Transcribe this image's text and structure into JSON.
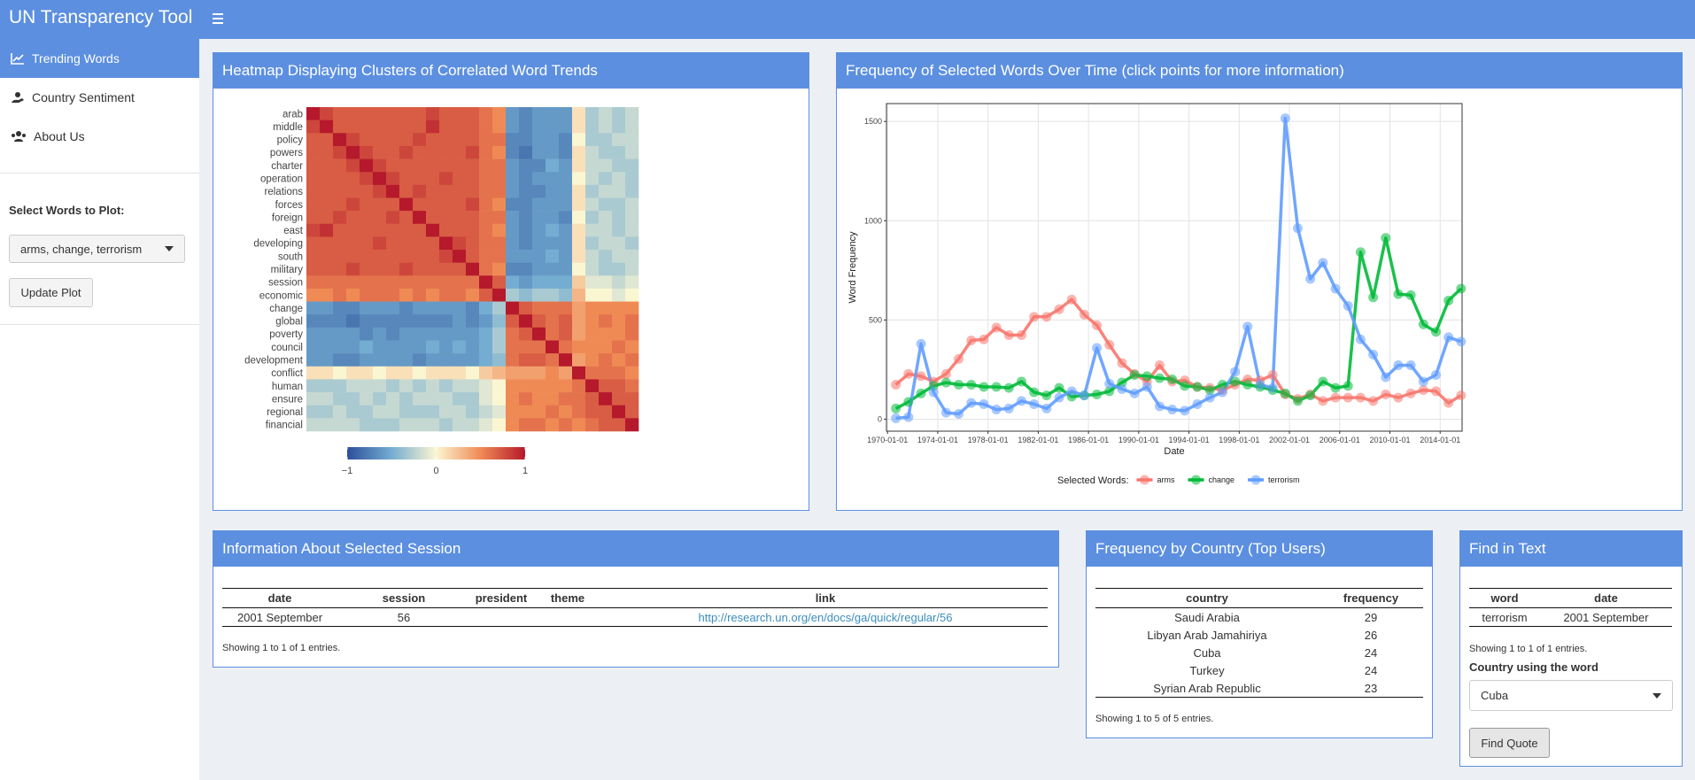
{
  "header": {
    "title": "UN Transparency Tool"
  },
  "sidebar": {
    "menu": [
      "Trending Words",
      "Country Sentiment",
      "About Us"
    ],
    "select_label": "Select Words to Plot:",
    "select_value": "arms, change, terrorism",
    "button": "Update Plot"
  },
  "chart_data": [
    {
      "type": "heatmap",
      "title": "Heatmap Displaying Clusters of Correlated Word Trends",
      "categories": [
        "arab",
        "middle",
        "policy",
        "powers",
        "charter",
        "operation",
        "relations",
        "forces",
        "foreign",
        "east",
        "developing",
        "south",
        "military",
        "session",
        "economic",
        "change",
        "global",
        "poverty",
        "council",
        "development",
        "conflict",
        "human",
        "ensure",
        "regional",
        "financial"
      ],
      "values": [
        [
          1,
          0.8,
          0.7,
          0.7,
          0.7,
          0.7,
          0.7,
          0.7,
          0.7,
          0.8,
          0.7,
          0.7,
          0.7,
          0.6,
          0.5,
          -0.6,
          -0.7,
          -0.6,
          -0.6,
          -0.6,
          0.1,
          -0.3,
          -0.2,
          -0.3,
          -0.2
        ],
        [
          0.8,
          1,
          0.7,
          0.7,
          0.7,
          0.7,
          0.7,
          0.7,
          0.7,
          0.9,
          0.7,
          0.7,
          0.7,
          0.6,
          0.5,
          -0.6,
          -0.7,
          -0.6,
          -0.6,
          -0.6,
          0.1,
          -0.3,
          -0.2,
          -0.3,
          -0.2
        ],
        [
          0.7,
          0.7,
          1,
          0.8,
          0.7,
          0.7,
          0.7,
          0.7,
          0.8,
          0.7,
          0.7,
          0.7,
          0.7,
          0.6,
          0.6,
          -0.7,
          -0.7,
          -0.6,
          -0.6,
          -0.7,
          0,
          -0.3,
          -0.3,
          -0.2,
          -0.2
        ],
        [
          0.7,
          0.7,
          0.8,
          1,
          0.8,
          0.7,
          0.7,
          0.8,
          0.7,
          0.7,
          0.7,
          0.7,
          0.8,
          0.6,
          0.5,
          -0.7,
          -0.8,
          -0.6,
          -0.6,
          -0.7,
          0.1,
          -0.2,
          -0.3,
          -0.3,
          -0.2
        ],
        [
          0.7,
          0.7,
          0.7,
          0.8,
          1,
          0.8,
          0.7,
          0.7,
          0.7,
          0.7,
          0.7,
          0.7,
          0.7,
          0.6,
          0.6,
          -0.6,
          -0.7,
          -0.7,
          -0.5,
          -0.6,
          0.1,
          -0.2,
          -0.2,
          -0.3,
          -0.3
        ],
        [
          0.7,
          0.7,
          0.7,
          0.7,
          0.8,
          1,
          0.8,
          0.7,
          0.7,
          0.7,
          0.8,
          0.7,
          0.7,
          0.6,
          0.6,
          -0.6,
          -0.7,
          -0.6,
          -0.6,
          -0.6,
          0,
          -0.2,
          -0.3,
          -0.2,
          -0.3
        ],
        [
          0.7,
          0.7,
          0.7,
          0.7,
          0.7,
          0.8,
          1,
          0.7,
          0.8,
          0.7,
          0.7,
          0.7,
          0.7,
          0.6,
          0.6,
          -0.6,
          -0.7,
          -0.7,
          -0.6,
          -0.6,
          0.1,
          -0.3,
          -0.2,
          -0.2,
          -0.3
        ],
        [
          0.7,
          0.7,
          0.7,
          0.8,
          0.7,
          0.7,
          0.7,
          1,
          0.7,
          0.7,
          0.7,
          0.7,
          0.8,
          0.6,
          0.5,
          -0.7,
          -0.7,
          -0.6,
          -0.6,
          -0.6,
          0.1,
          -0.2,
          -0.3,
          -0.3,
          -0.2
        ],
        [
          0.7,
          0.7,
          0.8,
          0.7,
          0.7,
          0.7,
          0.8,
          0.7,
          1,
          0.7,
          0.7,
          0.7,
          0.7,
          0.6,
          0.6,
          -0.6,
          -0.7,
          -0.6,
          -0.6,
          -0.7,
          0,
          -0.3,
          -0.2,
          -0.3,
          -0.2
        ],
        [
          0.8,
          0.9,
          0.7,
          0.7,
          0.7,
          0.7,
          0.7,
          0.7,
          0.7,
          1,
          0.7,
          0.7,
          0.7,
          0.6,
          0.5,
          -0.6,
          -0.7,
          -0.6,
          -0.5,
          -0.6,
          0.1,
          -0.2,
          -0.2,
          -0.3,
          -0.2
        ],
        [
          0.7,
          0.7,
          0.7,
          0.7,
          0.7,
          0.8,
          0.7,
          0.7,
          0.7,
          0.7,
          1,
          0.8,
          0.7,
          0.6,
          0.6,
          -0.6,
          -0.7,
          -0.6,
          -0.6,
          -0.6,
          0.1,
          -0.3,
          -0.2,
          -0.2,
          -0.3
        ],
        [
          0.7,
          0.7,
          0.7,
          0.7,
          0.7,
          0.7,
          0.7,
          0.7,
          0.7,
          0.7,
          0.8,
          1,
          0.7,
          0.6,
          0.6,
          -0.6,
          -0.6,
          -0.6,
          -0.5,
          -0.6,
          0.1,
          -0.2,
          -0.3,
          -0.2,
          -0.2
        ],
        [
          0.7,
          0.7,
          0.7,
          0.8,
          0.7,
          0.7,
          0.7,
          0.8,
          0.7,
          0.7,
          0.7,
          0.7,
          1,
          0.6,
          0.5,
          -0.7,
          -0.7,
          -0.6,
          -0.6,
          -0.6,
          0,
          -0.2,
          -0.3,
          -0.3,
          -0.2
        ],
        [
          0.6,
          0.6,
          0.6,
          0.6,
          0.6,
          0.6,
          0.6,
          0.6,
          0.6,
          0.6,
          0.6,
          0.6,
          0.6,
          1,
          0.7,
          -0.5,
          -0.6,
          -0.5,
          -0.5,
          -0.5,
          0.2,
          -0.1,
          -0.1,
          -0.2,
          -0.1
        ],
        [
          0.5,
          0.5,
          0.6,
          0.5,
          0.6,
          0.6,
          0.6,
          0.5,
          0.6,
          0.5,
          0.6,
          0.6,
          0.5,
          0.7,
          1,
          -0.3,
          -0.4,
          -0.3,
          -0.3,
          -0.4,
          0.3,
          0,
          0,
          -0.1,
          0
        ],
        [
          -0.6,
          -0.6,
          -0.7,
          -0.7,
          -0.6,
          -0.6,
          -0.6,
          -0.7,
          -0.6,
          -0.6,
          -0.6,
          -0.6,
          -0.7,
          -0.5,
          -0.3,
          1,
          0.7,
          0.6,
          0.6,
          0.6,
          0.4,
          0.5,
          0.5,
          0.5,
          0.5
        ],
        [
          -0.7,
          -0.7,
          -0.7,
          -0.8,
          -0.7,
          -0.7,
          -0.7,
          -0.7,
          -0.7,
          -0.7,
          -0.7,
          -0.6,
          -0.7,
          -0.6,
          -0.4,
          0.7,
          1,
          0.7,
          0.6,
          0.7,
          0.4,
          0.5,
          0.6,
          0.5,
          0.6
        ],
        [
          -0.6,
          -0.6,
          -0.6,
          -0.6,
          -0.7,
          -0.6,
          -0.7,
          -0.6,
          -0.6,
          -0.6,
          -0.6,
          -0.6,
          -0.6,
          -0.5,
          -0.3,
          0.6,
          0.7,
          1,
          0.6,
          0.7,
          0.4,
          0.5,
          0.5,
          0.5,
          0.6
        ],
        [
          -0.6,
          -0.6,
          -0.6,
          -0.6,
          -0.5,
          -0.6,
          -0.6,
          -0.6,
          -0.6,
          -0.5,
          -0.6,
          -0.5,
          -0.6,
          -0.5,
          -0.3,
          0.6,
          0.6,
          0.6,
          1,
          0.6,
          0.5,
          0.5,
          0.5,
          0.6,
          0.5
        ],
        [
          -0.6,
          -0.6,
          -0.7,
          -0.7,
          -0.6,
          -0.6,
          -0.6,
          -0.6,
          -0.7,
          -0.6,
          -0.6,
          -0.6,
          -0.6,
          -0.5,
          -0.4,
          0.6,
          0.7,
          0.7,
          0.6,
          1,
          0.4,
          0.5,
          0.6,
          0.5,
          0.6
        ],
        [
          0.1,
          0.1,
          0,
          0.1,
          0.1,
          0,
          0.1,
          0.1,
          0,
          0.1,
          0.1,
          0.1,
          0,
          0.2,
          0.3,
          0.4,
          0.4,
          0.4,
          0.5,
          0.4,
          1,
          0.6,
          0.6,
          0.6,
          0.5
        ],
        [
          -0.3,
          -0.3,
          -0.3,
          -0.2,
          -0.2,
          -0.2,
          -0.3,
          -0.2,
          -0.3,
          -0.2,
          -0.3,
          -0.2,
          -0.2,
          -0.1,
          0,
          0.5,
          0.5,
          0.5,
          0.5,
          0.5,
          0.6,
          1,
          0.7,
          0.7,
          0.6
        ],
        [
          -0.2,
          -0.2,
          -0.3,
          -0.3,
          -0.2,
          -0.3,
          -0.2,
          -0.3,
          -0.2,
          -0.2,
          -0.2,
          -0.3,
          -0.3,
          -0.1,
          0,
          0.5,
          0.6,
          0.5,
          0.5,
          0.6,
          0.6,
          0.7,
          1,
          0.7,
          0.7
        ],
        [
          -0.3,
          -0.3,
          -0.2,
          -0.3,
          -0.3,
          -0.2,
          -0.2,
          -0.3,
          -0.3,
          -0.3,
          -0.2,
          -0.2,
          -0.3,
          -0.2,
          -0.1,
          0.5,
          0.5,
          0.5,
          0.6,
          0.5,
          0.6,
          0.7,
          0.7,
          1,
          0.7
        ],
        [
          -0.2,
          -0.2,
          -0.2,
          -0.2,
          -0.3,
          -0.3,
          -0.3,
          -0.2,
          -0.2,
          -0.2,
          -0.3,
          -0.2,
          -0.2,
          -0.1,
          0,
          0.5,
          0.6,
          0.6,
          0.5,
          0.6,
          0.5,
          0.6,
          0.7,
          0.7,
          1
        ]
      ],
      "colorbar": {
        "lim": [
          -1,
          1
        ],
        "ticks": [
          {
            "value": -1,
            "label": "−1"
          },
          0,
          1
        ],
        "colors": [
          "#2d4f9c",
          "#74add1",
          "#fbf6d2",
          "#f08a55",
          "#b5192b"
        ]
      }
    },
    {
      "type": "line",
      "title": "Frequency of Selected Words Over Time (click points for more information)",
      "xlabel": "Date",
      "ylabel": "Word Frequency",
      "legend_title": "Selected Words:",
      "legend": "bottom",
      "grid": true,
      "x": [
        "1970-09-01",
        "1971-09-01",
        "1972-09-01",
        "1973-09-01",
        "1974-09-01",
        "1975-09-01",
        "1976-09-01",
        "1977-09-01",
        "1978-09-01",
        "1979-09-01",
        "1980-09-01",
        "1981-09-01",
        "1982-09-01",
        "1983-09-01",
        "1984-09-01",
        "1985-09-01",
        "1986-09-01",
        "1987-09-01",
        "1988-09-01",
        "1989-09-01",
        "1990-09-01",
        "1991-09-01",
        "1992-09-01",
        "1993-09-01",
        "1994-09-01",
        "1995-09-01",
        "1996-09-01",
        "1997-09-01",
        "1998-09-01",
        "1999-09-01",
        "2000-09-01",
        "2001-09-01",
        "2002-09-01",
        "2003-09-01",
        "2004-09-01",
        "2005-09-01",
        "2006-09-01",
        "2007-09-01",
        "2008-09-01",
        "2009-09-01",
        "2010-09-01",
        "2011-09-01",
        "2012-09-01",
        "2013-09-01",
        "2014-09-01",
        "2015-09-01"
      ],
      "series": [
        {
          "name": "arms",
          "color": "#f8766d",
          "values": [
            174,
            228,
            217,
            190,
            228,
            304,
            397,
            402,
            462,
            424,
            424,
            516,
            516,
            554,
            603,
            527,
            473,
            375,
            283,
            228,
            190,
            272,
            190,
            196,
            163,
            158,
            147,
            174,
            201,
            196,
            223,
            125,
            103,
            125,
            92,
            109,
            109,
            109,
            92,
            125,
            109,
            130,
            147,
            141,
            82,
            120
          ]
        },
        {
          "name": "change",
          "color": "#00ba38",
          "values": [
            54,
            87,
            130,
            168,
            185,
            174,
            174,
            163,
            163,
            158,
            190,
            136,
            120,
            158,
            114,
            120,
            125,
            141,
            185,
            223,
            217,
            207,
            201,
            168,
            163,
            147,
            174,
            190,
            174,
            163,
            147,
            130,
            92,
            120,
            190,
            158,
            168,
            842,
            614,
            913,
            630,
            625,
            478,
            440,
            598,
            658
          ]
        },
        {
          "name": "terrorism",
          "color": "#619cff",
          "values": [
            5,
            11,
            380,
            136,
            33,
            27,
            82,
            76,
            49,
            54,
            92,
            76,
            54,
            109,
            141,
            120,
            359,
            179,
            152,
            130,
            163,
            65,
            49,
            43,
            76,
            109,
            136,
            239,
            467,
            174,
            158,
            1516,
            962,
            707,
            788,
            658,
            571,
            402,
            326,
            212,
            272,
            272,
            190,
            223,
            413,
            391
          ]
        }
      ],
      "xlim": [
        "1969-12-01",
        "2015-10-01"
      ],
      "ylim": [
        -60,
        1590
      ],
      "xticks": [
        "1970-01-01",
        "1974-01-01",
        "1978-01-01",
        "1982-01-01",
        "1986-01-01",
        "1990-01-01",
        "1994-01-01",
        "1998-01-01",
        "2002-01-01",
        "2006-01-01",
        "2010-01-01",
        "2014-01-01"
      ],
      "yticks": [
        0,
        500,
        1000,
        1500
      ]
    }
  ],
  "session_info": {
    "title": "Information About Selected Session",
    "columns": [
      "date",
      "session",
      "president",
      "theme",
      "link"
    ],
    "rows": [
      [
        "2001 September",
        56,
        null,
        null,
        "http://research.un.org/en/docs/ga/quick/regular/56"
      ]
    ],
    "footer": "Showing 1 to 1 of 1 entries."
  },
  "country_frequency": {
    "title": "Frequency by Country (Top Users)",
    "columns": [
      "country",
      "frequency"
    ],
    "rows": [
      [
        "Saudi Arabia",
        29
      ],
      [
        "Libyan Arab Jamahiriya",
        26
      ],
      [
        "Cuba",
        24
      ],
      [
        "Turkey",
        24
      ],
      [
        "Syrian Arab Republic",
        23
      ]
    ],
    "footer": "Showing 1 to 5 of 5 entries."
  },
  "find_in_text": {
    "title": "Find in Text",
    "columns": [
      "word",
      "date"
    ],
    "rows": [
      [
        "terrorism",
        "2001 September"
      ]
    ],
    "footer": "Showing 1 to 1 of 1 entries.",
    "select_label": "Country using the word",
    "select_value": "Cuba",
    "button": "Find Quote"
  }
}
